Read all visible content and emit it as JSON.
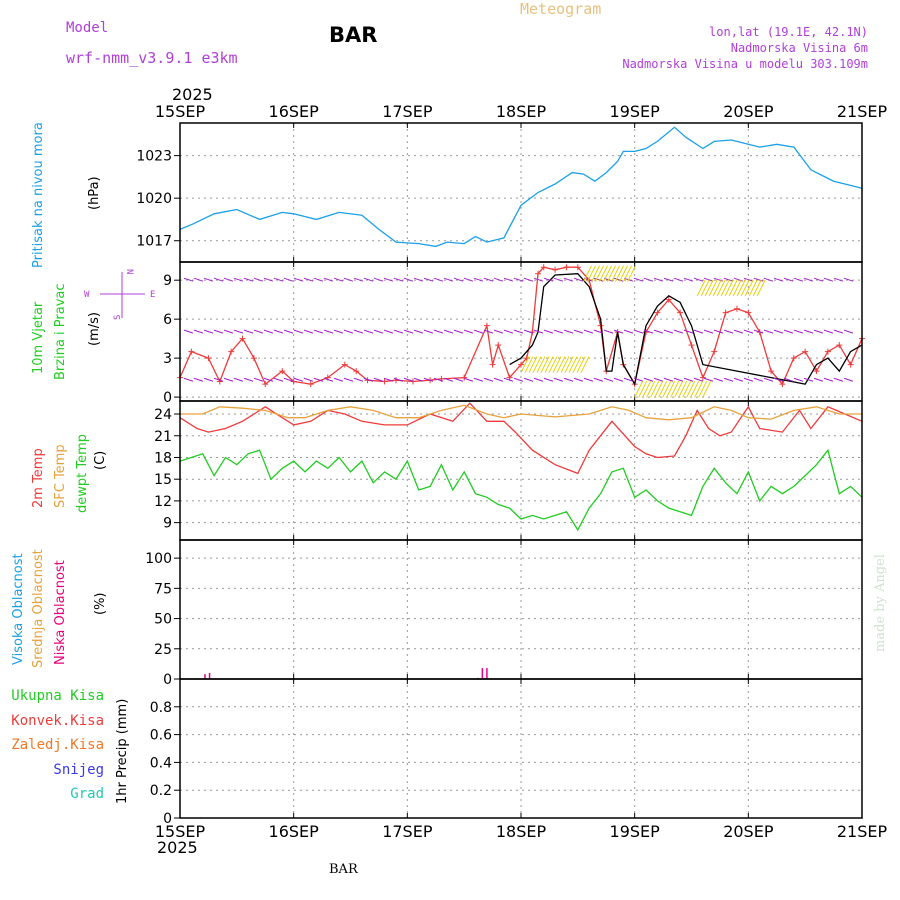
{
  "header": {
    "model_label": "Model",
    "model_name": "wrf-nmm_v3.9.1  e3km",
    "station": "BAR",
    "title": "Meteogram",
    "lonlat": "lon,lat (19.1E, 42.1N)",
    "elevation": "Nadmorska Visina 6m",
    "model_elevation": "Nadmorska Visina u modelu 303.109m",
    "footer_station": "BAR",
    "credit": "made by Angel"
  },
  "colors": {
    "pressure": "#1ca0e6",
    "temp2m": "#ee3b3b",
    "sfc": "#e6a23c",
    "dewpt": "#22cc22",
    "purple": "#a020c8",
    "wind_black": "#000000",
    "ukupna": "#22cc22",
    "konvek": "#ee3b3b",
    "zaledj": "#f07828",
    "snijeg": "#3a3ae6",
    "grad": "#20c8b4",
    "visoka": "#1ca0e6",
    "srednja": "#e6a23c",
    "niska": "#e6007e"
  },
  "time_axis": {
    "year_top": "2025",
    "year_bottom": "2025",
    "ticks": [
      "15SEP",
      "16SEP",
      "17SEP",
      "18SEP",
      "19SEP",
      "20SEP",
      "21SEP"
    ]
  },
  "chart_data": [
    {
      "type": "line",
      "title": "Pritisak na nivou mora",
      "ylabel": "(hPa)",
      "ylim": [
        1015.5,
        1025.3
      ],
      "yticks": [
        1017,
        1020,
        1023
      ],
      "ytick_labels": [
        "1017",
        "1020",
        "1023"
      ],
      "series": [
        {
          "name": "Pritisak na nivou mora",
          "x": [
            0,
            0.12,
            0.3,
            0.5,
            0.7,
            0.9,
            1.0,
            1.2,
            1.4,
            1.6,
            1.75,
            1.9,
            2.1,
            2.25,
            2.35,
            2.5,
            2.6,
            2.7,
            2.85,
            3.0,
            3.15,
            3.3,
            3.45,
            3.55,
            3.65,
            3.75,
            3.85,
            3.9,
            4.0,
            4.1,
            4.2,
            4.35,
            4.45,
            4.6,
            4.7,
            4.85,
            5.0,
            5.1,
            5.25,
            5.4,
            5.55,
            5.65,
            5.75,
            5.85,
            6.0
          ],
          "values": [
            1017.8,
            1018.2,
            1018.9,
            1019.2,
            1018.5,
            1019.0,
            1018.9,
            1018.5,
            1019.0,
            1018.8,
            1017.8,
            1016.9,
            1016.8,
            1016.6,
            1016.9,
            1016.8,
            1017.3,
            1016.9,
            1017.2,
            1019.5,
            1020.4,
            1021.0,
            1021.8,
            1021.7,
            1021.2,
            1021.8,
            1022.6,
            1023.3,
            1023.3,
            1023.5,
            1024.0,
            1025.0,
            1024.3,
            1023.5,
            1024.0,
            1024.1,
            1023.8,
            1023.6,
            1023.8,
            1023.6,
            1022.0,
            1021.6,
            1021.2,
            1021.0,
            1020.7
          ]
        }
      ]
    },
    {
      "type": "line",
      "title": "10m Vjetar Brzina i Pravac",
      "ylabel": "(m/s)",
      "ylim": [
        -0.3,
        10.4
      ],
      "yticks": [
        0,
        3,
        6,
        9
      ],
      "ytick_labels": [
        "0",
        "3",
        "6",
        "9"
      ],
      "compass": "E W N S",
      "series": [
        {
          "name": "Brzina",
          "x": [
            0,
            0.1,
            0.25,
            0.35,
            0.45,
            0.55,
            0.65,
            0.75,
            0.9,
            1.0,
            1.15,
            1.3,
            1.45,
            1.55,
            1.65,
            1.8,
            1.9,
            2.05,
            2.2,
            2.3,
            2.5,
            2.7,
            2.75,
            2.8,
            2.9,
            3.0,
            3.05,
            3.1,
            3.15,
            3.2,
            3.3,
            3.4,
            3.5,
            3.6,
            3.7,
            3.75,
            3.85,
            3.9,
            4.0,
            4.1,
            4.2,
            4.3,
            4.4,
            4.5,
            4.6,
            4.7,
            4.8,
            4.9,
            5.0,
            5.1,
            5.2,
            5.3,
            5.4,
            5.5,
            5.6,
            5.7,
            5.8,
            5.9,
            6.0
          ],
          "values": [
            1.5,
            3.5,
            3.0,
            1.2,
            3.5,
            4.5,
            3.0,
            1.0,
            2.0,
            1.2,
            1.0,
            1.5,
            2.5,
            2.0,
            1.3,
            1.2,
            1.3,
            1.2,
            1.3,
            1.4,
            1.5,
            5.5,
            2.5,
            4.0,
            1.5,
            2.5,
            3.0,
            5.0,
            9.5,
            10.0,
            9.8,
            10.0,
            10.0,
            9.0,
            5.5,
            2.0,
            5.0,
            2.5,
            1.0,
            5.0,
            6.5,
            7.5,
            6.5,
            4.0,
            1.5,
            3.5,
            6.5,
            6.8,
            6.5,
            5.0,
            2.0,
            1.0,
            3.0,
            3.5,
            2.0,
            3.5,
            4.0,
            2.5,
            4.5
          ]
        },
        {
          "name": "Brzina model",
          "x": [
            2.9,
            3.0,
            3.1,
            3.15,
            3.2,
            3.3,
            3.5,
            3.6,
            3.7,
            3.75,
            3.8,
            3.85,
            3.9,
            4.0,
            4.1,
            4.2,
            4.3,
            4.4,
            4.5,
            4.6,
            5.5,
            5.6,
            5.7,
            5.8,
            5.9,
            6.0
          ],
          "values": [
            2.5,
            3.0,
            4.0,
            5.0,
            8.5,
            9.4,
            9.5,
            8.5,
            6.0,
            2.0,
            2.0,
            5.0,
            2.5,
            1.0,
            5.5,
            7.0,
            7.8,
            7.3,
            5.5,
            2.5,
            1.0,
            2.5,
            3.0,
            2.0,
            3.5,
            4.0
          ]
        }
      ]
    },
    {
      "type": "line",
      "title": "2m Temp / SFC Temp / dewpt Temp",
      "ylabel": "(C)",
      "ylim": [
        6.6,
        25.8
      ],
      "yticks": [
        9,
        12,
        15,
        18,
        21,
        24
      ],
      "ytick_labels": [
        "9",
        "12",
        "15",
        "18",
        "21",
        "24"
      ],
      "series": [
        {
          "name": "2m Temp",
          "x": [
            0,
            0.15,
            0.25,
            0.4,
            0.55,
            0.75,
            0.9,
            1.0,
            1.15,
            1.3,
            1.45,
            1.6,
            1.8,
            2.0,
            2.2,
            2.4,
            2.55,
            2.7,
            2.85,
            2.95,
            3.1,
            3.3,
            3.5,
            3.6,
            3.8,
            4.0,
            4.1,
            4.2,
            4.35,
            4.45,
            4.55,
            4.65,
            4.75,
            4.85,
            5.0,
            5.1,
            5.3,
            5.45,
            5.55,
            5.7,
            5.85,
            6.0
          ],
          "values": [
            23.5,
            22.0,
            21.5,
            22.0,
            23.0,
            25.0,
            23.5,
            22.5,
            23.0,
            24.5,
            24.0,
            23.0,
            22.5,
            22.5,
            24.0,
            23.0,
            25.5,
            23.0,
            23.0,
            21.5,
            19.0,
            17.0,
            15.8,
            19.0,
            23.0,
            19.5,
            18.5,
            18.0,
            18.2,
            21.0,
            24.5,
            22.0,
            21.0,
            21.5,
            25.0,
            22.0,
            21.5,
            24.5,
            22.0,
            25.0,
            24.0,
            23.0
          ]
        },
        {
          "name": "SFC Temp",
          "x": [
            0,
            0.2,
            0.35,
            0.55,
            0.75,
            0.95,
            1.1,
            1.3,
            1.5,
            1.7,
            1.9,
            2.1,
            2.3,
            2.5,
            2.7,
            2.85,
            3.0,
            3.3,
            3.6,
            3.8,
            3.95,
            4.1,
            4.3,
            4.5,
            4.7,
            4.85,
            5.0,
            5.2,
            5.4,
            5.6,
            5.8,
            6.0
          ],
          "values": [
            24.0,
            24.0,
            25.0,
            24.8,
            24.5,
            23.5,
            23.5,
            24.5,
            25.0,
            24.5,
            23.5,
            23.5,
            24.5,
            25.2,
            24.0,
            23.5,
            24.0,
            23.6,
            24.0,
            25.0,
            24.5,
            23.5,
            23.2,
            23.5,
            25.0,
            24.5,
            23.5,
            23.3,
            24.5,
            25.0,
            24.0,
            24.0
          ]
        },
        {
          "name": "dewpt Temp",
          "x": [
            0,
            0.1,
            0.2,
            0.3,
            0.4,
            0.5,
            0.6,
            0.7,
            0.8,
            0.9,
            1.0,
            1.1,
            1.2,
            1.3,
            1.4,
            1.5,
            1.6,
            1.7,
            1.8,
            1.9,
            2.0,
            2.1,
            2.2,
            2.3,
            2.4,
            2.5,
            2.6,
            2.7,
            2.8,
            2.9,
            3.0,
            3.1,
            3.2,
            3.3,
            3.4,
            3.5,
            3.6,
            3.7,
            3.8,
            3.9,
            4.0,
            4.1,
            4.2,
            4.3,
            4.4,
            4.5,
            4.6,
            4.7,
            4.8,
            4.9,
            5.0,
            5.1,
            5.2,
            5.3,
            5.4,
            5.5,
            5.6,
            5.7,
            5.8,
            5.9,
            6.0
          ],
          "values": [
            17.5,
            18.0,
            18.5,
            15.5,
            18.0,
            17.0,
            18.5,
            19.0,
            15.0,
            16.5,
            17.5,
            16.0,
            17.5,
            16.5,
            18.0,
            16.0,
            17.5,
            14.5,
            16.0,
            15.0,
            17.5,
            13.5,
            14.0,
            17.0,
            13.5,
            16.0,
            13.0,
            12.5,
            11.5,
            11.0,
            9.5,
            10.0,
            9.5,
            10.0,
            10.5,
            8.0,
            11.0,
            13.0,
            16.0,
            16.5,
            12.5,
            13.5,
            12.0,
            11.0,
            10.5,
            10.0,
            14.0,
            16.5,
            14.5,
            13.0,
            16.0,
            12.0,
            14.0,
            13.0,
            14.0,
            15.5,
            17.0,
            19.0,
            13.0,
            14.0,
            12.5
          ]
        }
      ]
    },
    {
      "type": "bar",
      "title": "Visoka Oblacnost / Srednja Oblacnost / Niska Oblacnost",
      "ylabel": "(%)",
      "ylim": [
        0,
        115
      ],
      "yticks": [
        0,
        25,
        50,
        75,
        100
      ],
      "ytick_labels": [
        "0",
        "25",
        "50",
        "75",
        "100"
      ],
      "series": [
        {
          "name": "Visoka Oblacnost",
          "x": [
            2.62,
            2.68
          ],
          "values": [
            1,
            1
          ]
        },
        {
          "name": "Srednja Oblacnost",
          "x": [],
          "values": []
        },
        {
          "name": "Niska Oblacnost",
          "x": [
            0.22,
            0.26,
            2.66,
            2.7
          ],
          "values": [
            4,
            5,
            9,
            9
          ]
        }
      ]
    },
    {
      "type": "bar",
      "title": "Ukupna Kisa / Konvek.Kisa / Zaledj.Kisa / Snijeg / Grad",
      "ylabel": "1hr Precip (mm)",
      "ylim": [
        0,
        1.0
      ],
      "yticks": [
        0,
        0.2,
        0.4,
        0.6,
        0.8
      ],
      "ytick_labels": [
        "0",
        "0.2",
        "0.4",
        "0.6",
        "0.8"
      ],
      "series": [
        {
          "name": "Ukupna Kisa",
          "x": [
            0.18
          ],
          "values": [
            0.005
          ]
        },
        {
          "name": "Konvek.Kisa",
          "x": [],
          "values": []
        },
        {
          "name": "Zaledj.Kisa",
          "x": [],
          "values": []
        },
        {
          "name": "Snijeg",
          "x": [],
          "values": []
        },
        {
          "name": "Grad",
          "x": [],
          "values": []
        }
      ]
    }
  ],
  "labels": {
    "pressure": "Pritisak na nivou mora",
    "pressure_unit": "(hPa)",
    "wind1": "10m Vjetar",
    "wind2": "Brzina i Pravac",
    "wind_unit": "(m/s)",
    "temp2m": "2m Temp",
    "sfc": "SFC Temp",
    "dewpt": "dewpt Temp",
    "temp_unit": "(C)",
    "visoka": "Visoka Oblacnost",
    "srednja": "Srednja Oblacnost",
    "niska": "Niska Oblacnost",
    "cloud_unit": "(%)",
    "ukupna": "Ukupna Kisa",
    "konvek": "Konvek.Kisa",
    "zaledj": "Zaledj.Kisa",
    "snijeg": "Snijeg",
    "grad": "Grad",
    "precip_unit": "1hr Precip (mm)",
    "compass_e": "E",
    "compass_w": "W",
    "compass_n": "N",
    "compass_s": "S"
  }
}
